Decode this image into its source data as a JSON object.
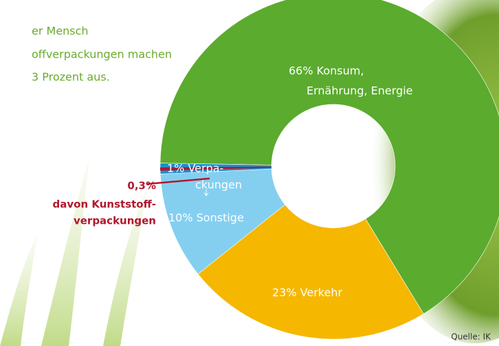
{
  "intro": [
    "er Mensch",
    "offverpackungen machen",
    "3 Prozent aus."
  ],
  "chart_data": {
    "type": "donut",
    "categories": [
      "Konsum, Ernährung, Energie",
      "Verkehr",
      "Sonstige",
      "Verpackungen"
    ],
    "values": [
      66,
      23,
      10,
      1
    ],
    "value_labels": [
      [
        "66% Konsum,",
        "Ernährung, Energie"
      ],
      [
        "23% Verkehr"
      ],
      [
        "10% Sonstige"
      ],
      [
        "1% Verpa-",
        "ckungen"
      ]
    ],
    "colors": [
      "#5aab2e",
      "#f5b700",
      "#84cff0",
      "#1c8fd0"
    ],
    "sub": {
      "value": 0.3,
      "value_label": "0,3%",
      "label": [
        "davon Kunststoff-",
        "verpackungen"
      ],
      "color": "#b0182e"
    },
    "source": "Quelle: IK"
  }
}
